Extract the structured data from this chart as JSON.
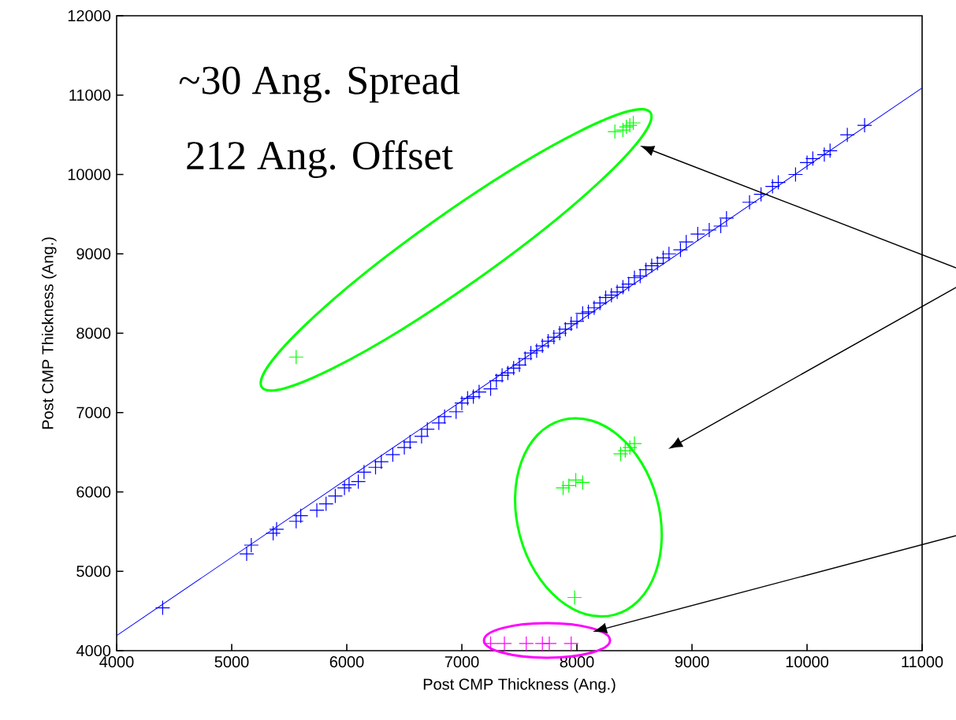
{
  "chart_data": {
    "type": "scatter",
    "xlabel": "Post CMP Thickness (Ang.)",
    "ylabel": "Post CMP Thickness (Ang.)",
    "xlim": [
      4000,
      11000
    ],
    "ylim": [
      4000,
      12000
    ],
    "xticks": [
      4000,
      5000,
      6000,
      7000,
      8000,
      9000,
      10000,
      11000
    ],
    "yticks": [
      4000,
      5000,
      6000,
      7000,
      8000,
      9000,
      10000,
      11000,
      12000
    ],
    "marker": "cross",
    "grid": false,
    "annotations": [
      "~30 Ang. Spread",
      "212 Ang. Offset"
    ],
    "series": [
      {
        "color": "#0000ff",
        "x": [
          4400,
          5130,
          5170,
          5360,
          5390,
          5560,
          5600,
          5740,
          5820,
          5900,
          5980,
          6020,
          6100,
          6150,
          6250,
          6300,
          6400,
          6500,
          6550,
          6650,
          6700,
          6800,
          6850,
          6950,
          7000,
          7050,
          7100,
          7150,
          7250,
          7300,
          7350,
          7400,
          7450,
          7500,
          7550,
          7600,
          7650,
          7700,
          7750,
          7800,
          7850,
          7900,
          7950,
          8000,
          8050,
          8100,
          8150,
          8200,
          8250,
          8300,
          8350,
          8400,
          8450,
          8500,
          8550,
          8600,
          8650,
          8700,
          8750,
          8800,
          8900,
          8950,
          9050,
          9150,
          9250,
          9300,
          9500,
          9600,
          9700,
          9750,
          9900,
          10000,
          10050,
          10150,
          10200,
          10350,
          10500
        ],
        "values": [
          4540,
          5220,
          5330,
          5480,
          5530,
          5630,
          5700,
          5770,
          5850,
          5950,
          6050,
          6090,
          6130,
          6250,
          6310,
          6380,
          6470,
          6560,
          6630,
          6700,
          6790,
          6870,
          6950,
          7010,
          7120,
          7180,
          7200,
          7260,
          7300,
          7400,
          7470,
          7500,
          7560,
          7600,
          7680,
          7750,
          7780,
          7840,
          7900,
          7950,
          8000,
          8050,
          8120,
          8150,
          8250,
          8270,
          8320,
          8380,
          8450,
          8480,
          8520,
          8580,
          8620,
          8700,
          8720,
          8800,
          8850,
          8880,
          8950,
          9000,
          9050,
          9150,
          9250,
          9300,
          9350,
          9450,
          9650,
          9750,
          9850,
          9900,
          10000,
          10150,
          10200,
          10250,
          10300,
          10500,
          10620
        ]
      },
      {
        "color": "#00ff00",
        "x": [
          5560,
          8330,
          8400,
          8430,
          8460,
          8490,
          7880,
          7930,
          7990,
          8050,
          8380,
          8420,
          8460,
          8500,
          7980
        ],
        "values": [
          7700,
          10540,
          10560,
          10600,
          10620,
          10650,
          6050,
          6080,
          6150,
          6120,
          6480,
          6520,
          6560,
          6610,
          4670
        ]
      },
      {
        "color": "#ff00ff",
        "x": [
          7250,
          7370,
          7560,
          7700,
          7760,
          7950
        ],
        "values": [
          4090,
          4090,
          4090,
          4090,
          4090,
          4090
        ]
      },
      {
        "type": "line",
        "marker": "none",
        "color": "#0000ff",
        "x": [
          4000,
          11000
        ],
        "values": [
          4190,
          11090
        ]
      }
    ]
  }
}
